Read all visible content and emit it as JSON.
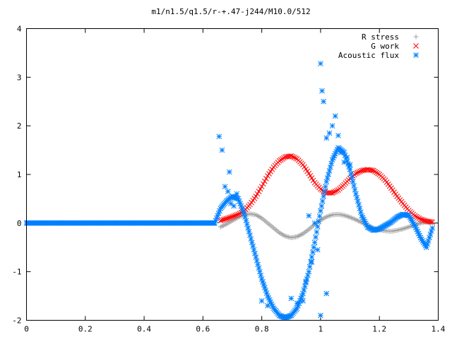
{
  "chart_data": {
    "type": "scatter",
    "title": "m1/n1.5/q1.5/r-+.47-j244/M10.0/512",
    "xlabel": "",
    "ylabel": "",
    "xlim": [
      0,
      1.4
    ],
    "ylim": [
      -2,
      4
    ],
    "xticks": [
      "0",
      "0.2",
      "0.4",
      "0.6",
      "0.8",
      "1",
      "1.2",
      "1.4"
    ],
    "yticks": [
      "-2",
      "-1",
      "0",
      "1",
      "2",
      "3",
      "4"
    ],
    "grid": false,
    "legend_position": "top-right",
    "series": [
      {
        "name": "R stress",
        "marker": "plus",
        "color": "#a0a0a0",
        "x": [
          0.66,
          0.68,
          0.7,
          0.72,
          0.74,
          0.76,
          0.78,
          0.8,
          0.82,
          0.84,
          0.86,
          0.88,
          0.9,
          0.92,
          0.94,
          0.96,
          0.98,
          1.0,
          1.02,
          1.04,
          1.06,
          1.08,
          1.1,
          1.12,
          1.14,
          1.16,
          1.18,
          1.2,
          1.22,
          1.24,
          1.26,
          1.28,
          1.3,
          1.32,
          1.34,
          1.36,
          1.38
        ],
        "y": [
          -0.08,
          -0.02,
          0.05,
          0.12,
          0.17,
          0.19,
          0.17,
          0.1,
          0.0,
          -0.1,
          -0.2,
          -0.27,
          -0.3,
          -0.28,
          -0.22,
          -0.13,
          -0.03,
          0.06,
          0.13,
          0.17,
          0.18,
          0.16,
          0.12,
          0.07,
          0.01,
          -0.05,
          -0.1,
          -0.14,
          -0.16,
          -0.17,
          -0.15,
          -0.12,
          -0.08,
          -0.04,
          0.0,
          0.02,
          0.01
        ]
      },
      {
        "name": "G work",
        "marker": "cross",
        "color": "#ff0000",
        "x": [
          0.66,
          0.68,
          0.7,
          0.72,
          0.74,
          0.76,
          0.78,
          0.8,
          0.82,
          0.84,
          0.86,
          0.88,
          0.9,
          0.92,
          0.94,
          0.96,
          0.98,
          1.0,
          1.02,
          1.04,
          1.06,
          1.08,
          1.1,
          1.12,
          1.14,
          1.16,
          1.18,
          1.2,
          1.22,
          1.24,
          1.26,
          1.28,
          1.3,
          1.32,
          1.34,
          1.36,
          1.38
        ],
        "y": [
          0.05,
          0.09,
          0.13,
          0.18,
          0.25,
          0.38,
          0.55,
          0.75,
          0.97,
          1.15,
          1.28,
          1.36,
          1.38,
          1.32,
          1.2,
          1.02,
          0.83,
          0.7,
          0.62,
          0.62,
          0.68,
          0.79,
          0.92,
          1.02,
          1.08,
          1.1,
          1.08,
          1.0,
          0.88,
          0.72,
          0.55,
          0.4,
          0.26,
          0.15,
          0.08,
          0.04,
          0.02
        ]
      },
      {
        "name": "Acoustic flux",
        "marker": "star",
        "color": "#0080ff",
        "x": [
          0.0,
          0.05,
          0.1,
          0.15,
          0.2,
          0.25,
          0.3,
          0.35,
          0.4,
          0.45,
          0.5,
          0.55,
          0.6,
          0.64,
          0.66,
          0.68,
          0.7,
          0.72,
          0.74,
          0.76,
          0.78,
          0.8,
          0.82,
          0.84,
          0.86,
          0.88,
          0.9,
          0.92,
          0.94,
          0.96,
          0.98,
          1.0,
          1.02,
          1.04,
          1.06,
          1.08,
          1.1,
          1.12,
          1.14,
          1.16,
          1.18,
          1.2,
          1.22,
          1.24,
          1.26,
          1.28,
          1.3,
          1.32,
          1.34,
          1.36,
          1.38,
          0.655,
          0.665,
          0.675,
          0.685,
          0.69,
          0.695,
          0.705,
          0.715,
          0.8,
          0.82,
          0.9,
          0.92,
          0.94,
          0.95,
          0.97,
          0.99,
          1.0,
          1.005,
          1.01,
          1.02,
          1.03,
          1.04,
          1.05,
          1.06,
          1.07,
          1.08,
          1.09,
          1.1,
          0.96,
          0.98,
          1.0,
          1.02
        ],
        "y": [
          0.0,
          0.0,
          0.0,
          0.0,
          0.0,
          0.0,
          0.0,
          0.0,
          0.0,
          0.0,
          0.0,
          0.0,
          0.0,
          0.0,
          0.3,
          0.45,
          0.55,
          0.5,
          0.2,
          -0.25,
          -0.7,
          -1.15,
          -1.5,
          -1.75,
          -1.9,
          -1.95,
          -1.9,
          -1.75,
          -1.45,
          -1.0,
          -0.4,
          0.25,
          0.85,
          1.3,
          1.55,
          1.45,
          1.1,
          0.6,
          0.15,
          -0.08,
          -0.15,
          -0.12,
          -0.05,
          0.02,
          0.12,
          0.18,
          0.15,
          -0.05,
          -0.3,
          -0.5,
          -0.1,
          1.78,
          1.5,
          0.75,
          0.65,
          1.05,
          0.4,
          0.35,
          0.6,
          -1.6,
          -1.7,
          -1.55,
          -1.65,
          -1.6,
          -1.2,
          -0.8,
          -0.55,
          3.28,
          2.72,
          2.5,
          1.75,
          1.85,
          2.0,
          2.2,
          1.8,
          1.45,
          1.25,
          1.35,
          1.2,
          0.15,
          0.0,
          -1.9,
          -1.45
        ]
      }
    ]
  }
}
